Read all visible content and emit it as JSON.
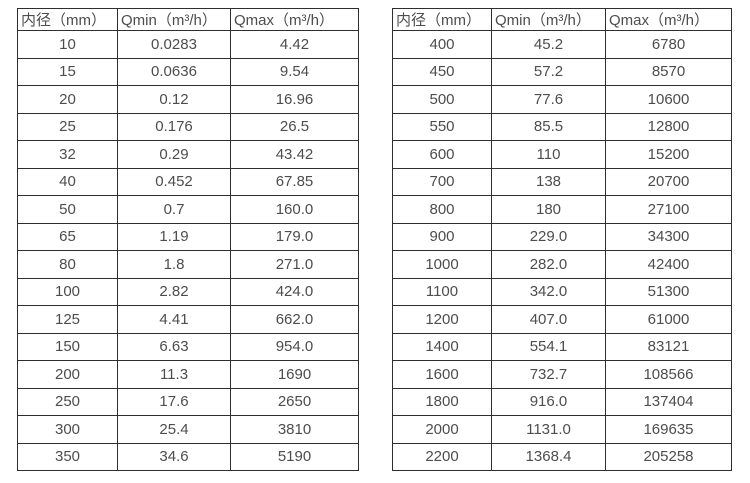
{
  "colors": {
    "background": "#ffffff",
    "border": "#2e2e2e",
    "text": "#4d4d4d"
  },
  "tables": [
    {
      "name": "flow-table-small-diameters",
      "headers": [
        "内径（mm）",
        "Qmin（m³/h）",
        "Qmax（m³/h）"
      ],
      "rows": [
        [
          "10",
          "0.0283",
          "4.42"
        ],
        [
          "15",
          "0.0636",
          "9.54"
        ],
        [
          "20",
          "0.12",
          "16.96"
        ],
        [
          "25",
          "0.176",
          "26.5"
        ],
        [
          "32",
          "0.29",
          "43.42"
        ],
        [
          "40",
          "0.452",
          "67.85"
        ],
        [
          "50",
          "0.7",
          "160.0"
        ],
        [
          "65",
          "1.19",
          "179.0"
        ],
        [
          "80",
          "1.8",
          "271.0"
        ],
        [
          "100",
          "2.82",
          "424.0"
        ],
        [
          "125",
          "4.41",
          "662.0"
        ],
        [
          "150",
          "6.63",
          "954.0"
        ],
        [
          "200",
          "11.3",
          "1690"
        ],
        [
          "250",
          "17.6",
          "2650"
        ],
        [
          "300",
          "25.4",
          "3810"
        ],
        [
          "350",
          "34.6",
          "5190"
        ]
      ]
    },
    {
      "name": "flow-table-large-diameters",
      "headers": [
        "内径（mm）",
        "Qmin（m³/h）",
        "Qmax（m³/h）"
      ],
      "rows": [
        [
          "400",
          "45.2",
          "6780"
        ],
        [
          "450",
          "57.2",
          "8570"
        ],
        [
          "500",
          "77.6",
          "10600"
        ],
        [
          "550",
          "85.5",
          "12800"
        ],
        [
          "600",
          "110",
          "15200"
        ],
        [
          "700",
          "138",
          "20700"
        ],
        [
          "800",
          "180",
          "27100"
        ],
        [
          "900",
          "229.0",
          "34300"
        ],
        [
          "1000",
          "282.0",
          "42400"
        ],
        [
          "1100",
          "342.0",
          "51300"
        ],
        [
          "1200",
          "407.0",
          "61000"
        ],
        [
          "1400",
          "554.1",
          "83121"
        ],
        [
          "1600",
          "732.7",
          "108566"
        ],
        [
          "1800",
          "916.0",
          "137404"
        ],
        [
          "2000",
          "1131.0",
          "169635"
        ],
        [
          "2200",
          "1368.4",
          "205258"
        ]
      ]
    }
  ]
}
